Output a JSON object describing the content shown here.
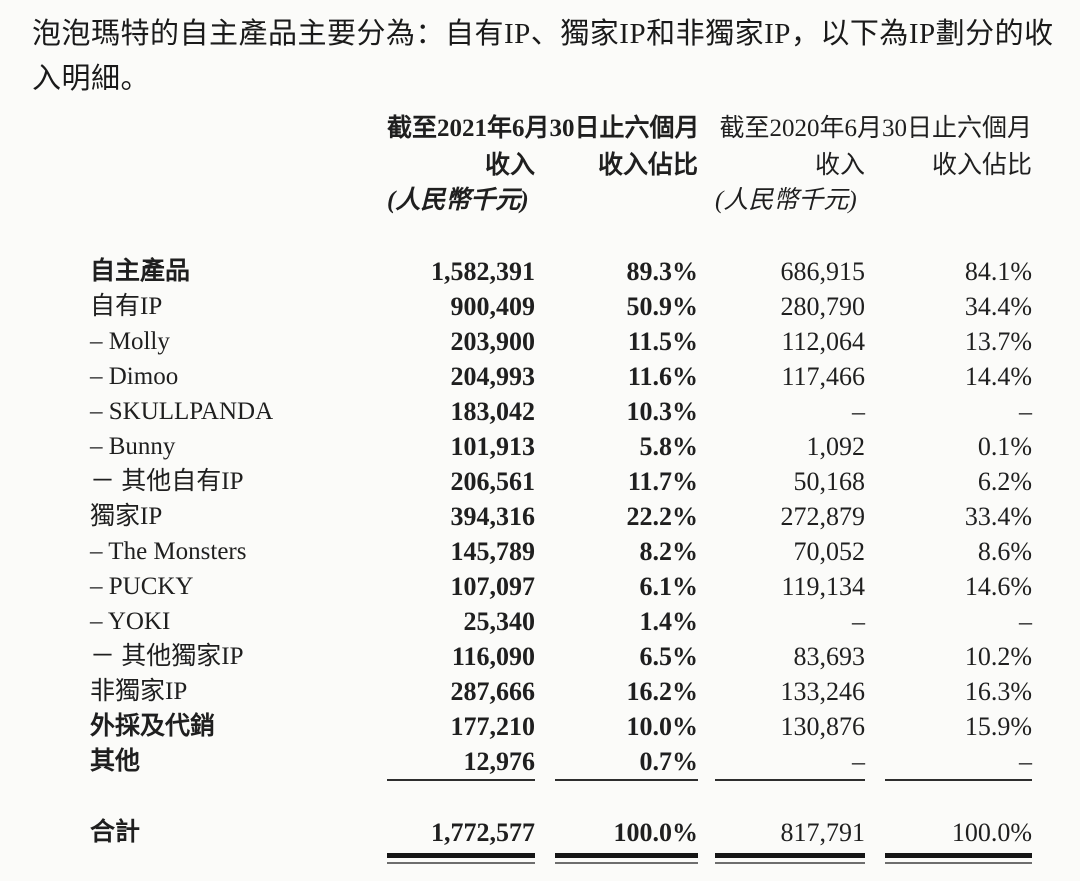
{
  "colors": {
    "background": "#fbfbf9",
    "text": "#1f1f1f",
    "rule_single": "#2e2e2e",
    "rule_double_thick": "#161616",
    "rule_double_thin": "#6e6e6e"
  },
  "intro": {
    "text": "泡泡瑪特的自主產品主要分為：自有IP、獨家IP和非獨家IP，以下為IP劃分的收入明細。"
  },
  "table": {
    "period_headers": [
      {
        "label": "截至2021年6月30日止六個月",
        "bold": true
      },
      {
        "label": "截至2020年6月30日止六個月",
        "bold": false
      }
    ],
    "column_headers": {
      "revenue": "收入",
      "share": "收入佔比",
      "unit": "(人民幣千元)"
    },
    "rows": [
      {
        "label": "自主產品",
        "bold": true,
        "v2021": "1,582,391",
        "p2021": "89.3%",
        "v2020": "686,915",
        "p2020": "84.1%"
      },
      {
        "label": "自有IP",
        "bold": false,
        "v2021": "900,409",
        "p2021": "50.9%",
        "v2020": "280,790",
        "p2020": "34.4%"
      },
      {
        "label": "– Molly",
        "bold": false,
        "v2021": "203,900",
        "p2021": "11.5%",
        "v2020": "112,064",
        "p2020": "13.7%"
      },
      {
        "label": "– Dimoo",
        "bold": false,
        "v2021": "204,993",
        "p2021": "11.6%",
        "v2020": "117,466",
        "p2020": "14.4%"
      },
      {
        "label": "– SKULLPANDA",
        "bold": false,
        "v2021": "183,042",
        "p2021": "10.3%",
        "v2020": "–",
        "p2020": "–"
      },
      {
        "label": "– Bunny",
        "bold": false,
        "v2021": "101,913",
        "p2021": "5.8%",
        "v2020": "1,092",
        "p2020": "0.1%"
      },
      {
        "label": "－ 其他自有IP",
        "bold": false,
        "v2021": "206,561",
        "p2021": "11.7%",
        "v2020": "50,168",
        "p2020": "6.2%"
      },
      {
        "label": "獨家IP",
        "bold": false,
        "v2021": "394,316",
        "p2021": "22.2%",
        "v2020": "272,879",
        "p2020": "33.4%"
      },
      {
        "label": "– The Monsters",
        "bold": false,
        "v2021": "145,789",
        "p2021": "8.2%",
        "v2020": "70,052",
        "p2020": "8.6%"
      },
      {
        "label": "– PUCKY",
        "bold": false,
        "v2021": "107,097",
        "p2021": "6.1%",
        "v2020": "119,134",
        "p2020": "14.6%"
      },
      {
        "label": "– YOKI",
        "bold": false,
        "v2021": "25,340",
        "p2021": "1.4%",
        "v2020": "–",
        "p2020": "–"
      },
      {
        "label": "－ 其他獨家IP",
        "bold": false,
        "v2021": "116,090",
        "p2021": "6.5%",
        "v2020": "83,693",
        "p2020": "10.2%"
      },
      {
        "label": "非獨家IP",
        "bold": false,
        "v2021": "287,666",
        "p2021": "16.2%",
        "v2020": "133,246",
        "p2020": "16.3%"
      },
      {
        "label": "外採及代銷",
        "bold": true,
        "v2021": "177,210",
        "p2021": "10.0%",
        "v2020": "130,876",
        "p2020": "15.9%"
      },
      {
        "label": "其他",
        "bold": true,
        "rule_below": true,
        "v2021": "12,976",
        "p2021": "0.7%",
        "v2020": "–",
        "p2020": "–"
      }
    ],
    "total": {
      "label": "合計",
      "v2021": "1,772,577",
      "p2021": "100.0%",
      "v2020": "817,791",
      "p2020": "100.0%"
    }
  }
}
